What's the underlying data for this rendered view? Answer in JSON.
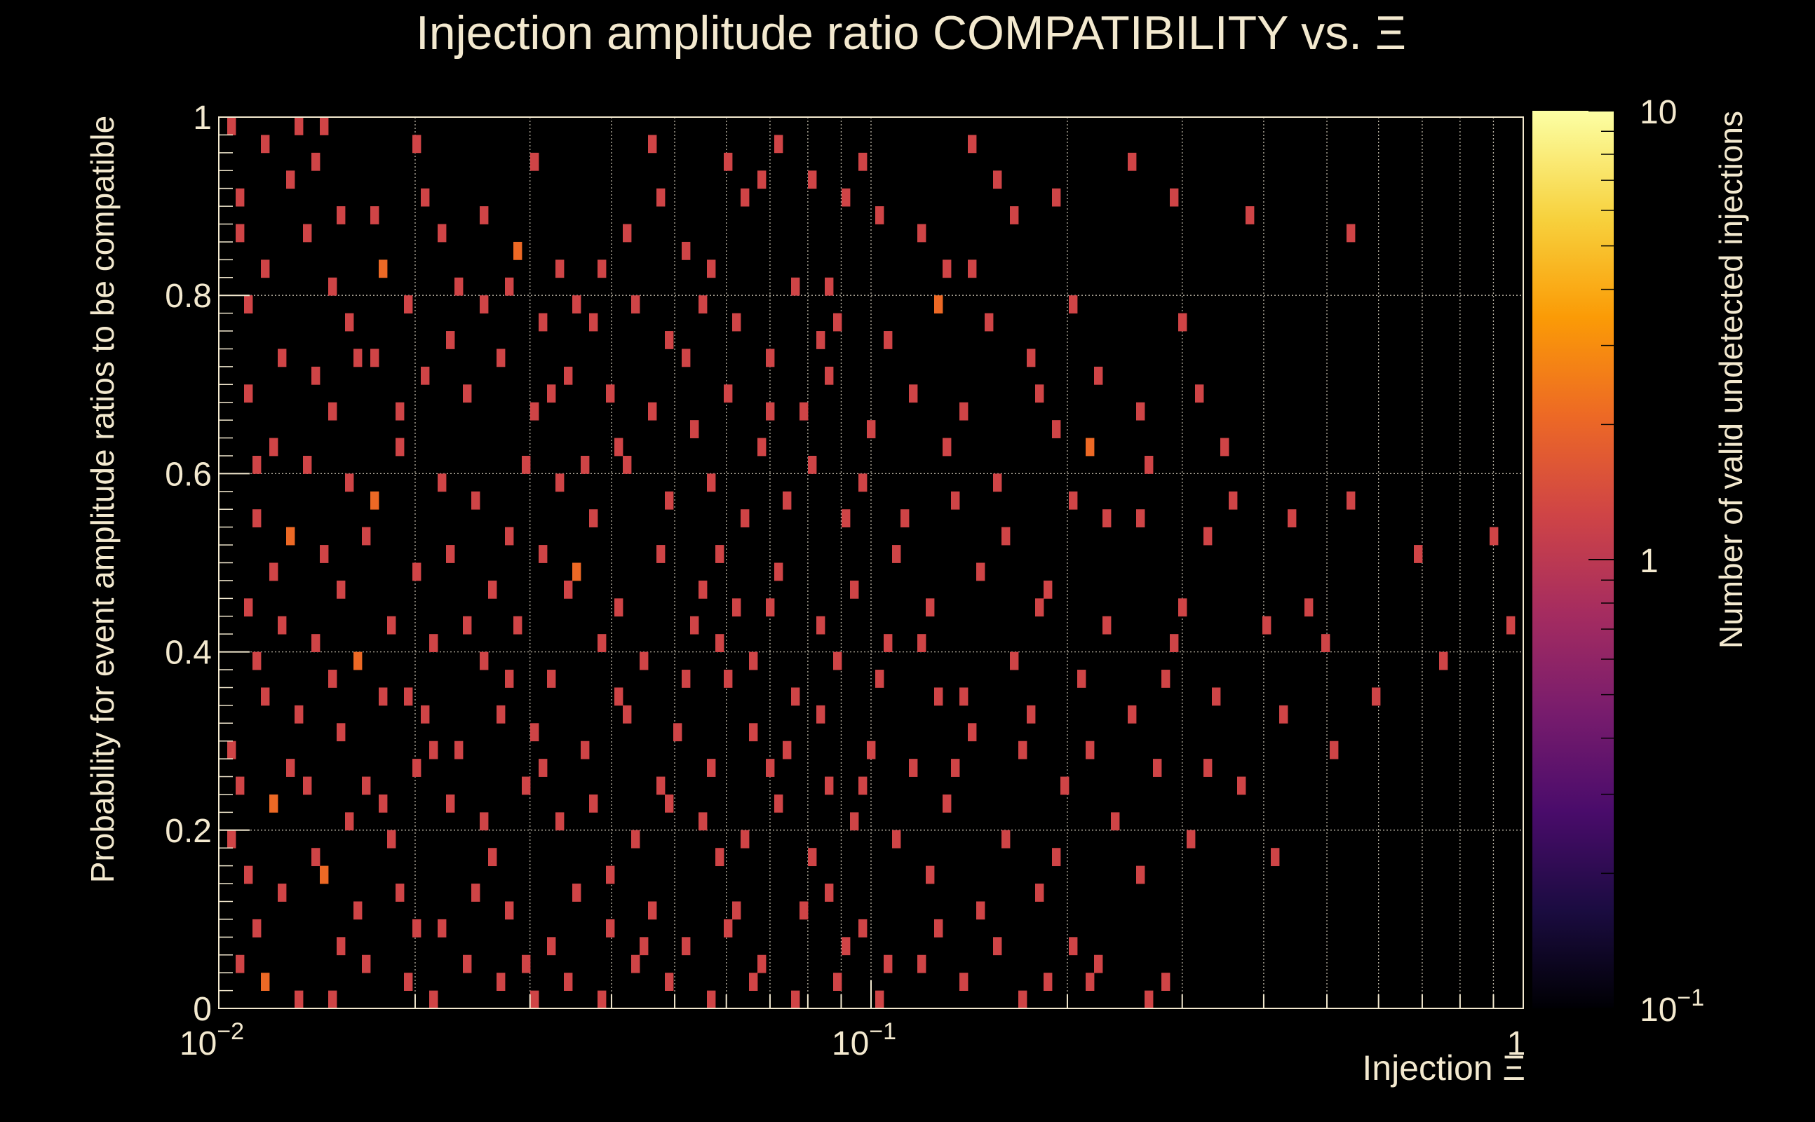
{
  "chart_data": {
    "type": "heatmap",
    "title": "Injection amplitude ratio COMPATIBILITY vs.  Ξ",
    "xlabel": "Injection Ξ",
    "ylabel": "Probability for event amplitude ratios to be compatible",
    "colorbar_label": "Number of valid undetected injections",
    "x_scale": "log",
    "xlim": [
      0.01,
      1
    ],
    "ylim": [
      0,
      1
    ],
    "z_scale": "log",
    "zlim": [
      0.1,
      10
    ],
    "grid": true,
    "x_ticks": [
      {
        "value": 0.01,
        "base": "10",
        "exp": "−2"
      },
      {
        "value": 0.1,
        "base": "10",
        "exp": "−1"
      },
      {
        "value": 1,
        "base": "1",
        "exp": ""
      }
    ],
    "y_ticks": [
      {
        "value": 0,
        "label": "0"
      },
      {
        "value": 0.2,
        "label": "0.2"
      },
      {
        "value": 0.4,
        "label": "0.4"
      },
      {
        "value": 0.6,
        "label": "0.6"
      },
      {
        "value": 0.8,
        "label": "0.8"
      },
      {
        "value": 1,
        "label": "1"
      }
    ],
    "z_ticks": [
      {
        "value": 0.1,
        "base": "10",
        "exp": "−1"
      },
      {
        "value": 1,
        "base": "1",
        "exp": ""
      },
      {
        "value": 10,
        "base": "10",
        "exp": ""
      }
    ],
    "bins": {
      "x_count": 100,
      "y_count": 50
    },
    "colormap": [
      "#000004",
      "#1b0c41",
      "#4a0c6b",
      "#781c6d",
      "#a52c60",
      "#cf4446",
      "#ed6925",
      "#fb9b06",
      "#f7d13d",
      "#fcffa4"
    ],
    "cells": [
      [
        1,
        49,
        1
      ],
      [
        5,
        48,
        1
      ],
      [
        9,
        49,
        1
      ],
      [
        12,
        49,
        1
      ],
      [
        23,
        48,
        1
      ],
      [
        2,
        45,
        1
      ],
      [
        8,
        46,
        1
      ],
      [
        14,
        44,
        1
      ],
      [
        2,
        43,
        1
      ],
      [
        10,
        43,
        1
      ],
      [
        18,
        44,
        1
      ],
      [
        26,
        43,
        1
      ],
      [
        31,
        44,
        1
      ],
      [
        35,
        42,
        2
      ],
      [
        40,
        41,
        1
      ],
      [
        45,
        41,
        1
      ],
      [
        48,
        43,
        1
      ],
      [
        52,
        45,
        1
      ],
      [
        55,
        42,
        1
      ],
      [
        60,
        47,
        1
      ],
      [
        62,
        45,
        1
      ],
      [
        66,
        48,
        1
      ],
      [
        70,
        46,
        1
      ],
      [
        74,
        45,
        1
      ],
      [
        78,
        44,
        1
      ],
      [
        83,
        43,
        1
      ],
      [
        86,
        41,
        1
      ],
      [
        92,
        46,
        1
      ],
      [
        94,
        44,
        1
      ],
      [
        108,
        47,
        1
      ],
      [
        113,
        45,
        1
      ],
      [
        122,
        44,
        1
      ],
      [
        134,
        43,
        1
      ],
      [
        5,
        41,
        1
      ],
      [
        13,
        40,
        1
      ],
      [
        19,
        41,
        2
      ],
      [
        22,
        39,
        1
      ],
      [
        28,
        40,
        1
      ],
      [
        34,
        40,
        1
      ],
      [
        38,
        38,
        1
      ],
      [
        42,
        39,
        1
      ],
      [
        49,
        39,
        1
      ],
      [
        53,
        37,
        1
      ],
      [
        57,
        39,
        1
      ],
      [
        61,
        38,
        1
      ],
      [
        65,
        36,
        1
      ],
      [
        68,
        40,
        1
      ],
      [
        73,
        38,
        1
      ],
      [
        79,
        37,
        1
      ],
      [
        85,
        39,
        2
      ],
      [
        91,
        38,
        1
      ],
      [
        96,
        36,
        1
      ],
      [
        104,
        35,
        1
      ],
      [
        116,
        34,
        1
      ],
      [
        7,
        36,
        1
      ],
      [
        11,
        35,
        1
      ],
      [
        16,
        36,
        1
      ],
      [
        24,
        35,
        1
      ],
      [
        29,
        34,
        1
      ],
      [
        33,
        36,
        1
      ],
      [
        37,
        33,
        1
      ],
      [
        41,
        35,
        1
      ],
      [
        46,
        34,
        1
      ],
      [
        51,
        33,
        1
      ],
      [
        56,
        32,
        1
      ],
      [
        60,
        34,
        1
      ],
      [
        64,
        31,
        1
      ],
      [
        69,
        33,
        1
      ],
      [
        72,
        35,
        1
      ],
      [
        77,
        32,
        1
      ],
      [
        82,
        34,
        1
      ],
      [
        88,
        33,
        1
      ],
      [
        99,
        32,
        1
      ],
      [
        103,
        31,
        2
      ],
      [
        110,
        30,
        1
      ],
      [
        6,
        31,
        1
      ],
      [
        10,
        30,
        1
      ],
      [
        15,
        29,
        1
      ],
      [
        21,
        31,
        1
      ],
      [
        26,
        29,
        1
      ],
      [
        30,
        28,
        1
      ],
      [
        36,
        30,
        1
      ],
      [
        40,
        29,
        1
      ],
      [
        44,
        27,
        1
      ],
      [
        48,
        30,
        1
      ],
      [
        53,
        28,
        1
      ],
      [
        58,
        29,
        1
      ],
      [
        62,
        27,
        1
      ],
      [
        67,
        28,
        1
      ],
      [
        70,
        30,
        1
      ],
      [
        76,
        29,
        1
      ],
      [
        81,
        27,
        1
      ],
      [
        87,
        28,
        1
      ],
      [
        93,
        26,
        1
      ],
      [
        101,
        28,
        1
      ],
      [
        109,
        27,
        1
      ],
      [
        117,
        26,
        1
      ],
      [
        127,
        27,
        1
      ],
      [
        134,
        28,
        1
      ],
      [
        142,
        25,
        1
      ],
      [
        151,
        26,
        1
      ],
      [
        4,
        27,
        1
      ],
      [
        8,
        26,
        2
      ],
      [
        12,
        25,
        1
      ],
      [
        17,
        26,
        1
      ],
      [
        23,
        24,
        1
      ],
      [
        27,
        25,
        1
      ],
      [
        32,
        23,
        1
      ],
      [
        38,
        25,
        1
      ],
      [
        42,
        24,
        2
      ],
      [
        47,
        22,
        1
      ],
      [
        52,
        25,
        1
      ],
      [
        57,
        23,
        1
      ],
      [
        61,
        22,
        1
      ],
      [
        66,
        24,
        1
      ],
      [
        71,
        21,
        1
      ],
      [
        75,
        23,
        1
      ],
      [
        80,
        25,
        1
      ],
      [
        84,
        22,
        1
      ],
      [
        90,
        24,
        1
      ],
      [
        98,
        23,
        1
      ],
      [
        105,
        21,
        1
      ],
      [
        114,
        22,
        1
      ],
      [
        124,
        21,
        1
      ],
      [
        131,
        20,
        1
      ],
      [
        145,
        19,
        1
      ],
      [
        153,
        21,
        1
      ],
      [
        3,
        22,
        1
      ],
      [
        7,
        21,
        1
      ],
      [
        11,
        20,
        1
      ],
      [
        16,
        19,
        2
      ],
      [
        20,
        21,
        1
      ],
      [
        25,
        20,
        1
      ],
      [
        31,
        19,
        1
      ],
      [
        35,
        21,
        1
      ],
      [
        39,
        18,
        1
      ],
      [
        45,
        20,
        1
      ],
      [
        50,
        19,
        1
      ],
      [
        55,
        18,
        1
      ],
      [
        59,
        20,
        1
      ],
      [
        63,
        19,
        1
      ],
      [
        68,
        17,
        1
      ],
      [
        73,
        19,
        1
      ],
      [
        78,
        18,
        1
      ],
      [
        83,
        20,
        1
      ],
      [
        88,
        17,
        1
      ],
      [
        94,
        19,
        1
      ],
      [
        102,
        18,
        1
      ],
      [
        108,
        16,
        1
      ],
      [
        118,
        17,
        1
      ],
      [
        126,
        16,
        1
      ],
      [
        137,
        17,
        1
      ],
      [
        5,
        17,
        1
      ],
      [
        9,
        16,
        1
      ],
      [
        14,
        15,
        1
      ],
      [
        19,
        17,
        1
      ],
      [
        24,
        16,
        1
      ],
      [
        28,
        14,
        1
      ],
      [
        33,
        16,
        1
      ],
      [
        37,
        15,
        1
      ],
      [
        43,
        14,
        1
      ],
      [
        48,
        16,
        1
      ],
      [
        54,
        15,
        1
      ],
      [
        58,
        13,
        1
      ],
      [
        63,
        15,
        1
      ],
      [
        67,
        14,
        1
      ],
      [
        72,
        12,
        1
      ],
      [
        77,
        14,
        1
      ],
      [
        82,
        13,
        1
      ],
      [
        89,
        15,
        1
      ],
      [
        95,
        14,
        1
      ],
      [
        100,
        12,
        1
      ],
      [
        111,
        13,
        1
      ],
      [
        121,
        12,
        1
      ],
      [
        132,
        14,
        1
      ],
      [
        2,
        12,
        1
      ],
      [
        6,
        11,
        2
      ],
      [
        10,
        12,
        1
      ],
      [
        15,
        10,
        1
      ],
      [
        19,
        11,
        1
      ],
      [
        23,
        13,
        1
      ],
      [
        27,
        11,
        1
      ],
      [
        31,
        10,
        1
      ],
      [
        36,
        12,
        1
      ],
      [
        40,
        10,
        1
      ],
      [
        44,
        11,
        1
      ],
      [
        49,
        9,
        1
      ],
      [
        53,
        11,
        1
      ],
      [
        57,
        10,
        1
      ],
      [
        62,
        9,
        1
      ],
      [
        66,
        11,
        1
      ],
      [
        70,
        8,
        1
      ],
      [
        75,
        10,
        1
      ],
      [
        80,
        9,
        1
      ],
      [
        86,
        11,
        1
      ],
      [
        93,
        9,
        1
      ],
      [
        99,
        8,
        1
      ],
      [
        106,
        10,
        1
      ],
      [
        115,
        9,
        1
      ],
      [
        125,
        8,
        1
      ],
      [
        3,
        7,
        1
      ],
      [
        7,
        6,
        1
      ],
      [
        12,
        7,
        2
      ],
      [
        16,
        5,
        1
      ],
      [
        21,
        6,
        1
      ],
      [
        26,
        4,
        1
      ],
      [
        30,
        6,
        1
      ],
      [
        34,
        5,
        1
      ],
      [
        39,
        3,
        1
      ],
      [
        42,
        6,
        1
      ],
      [
        46,
        4,
        1
      ],
      [
        51,
        5,
        1
      ],
      [
        55,
        3,
        1
      ],
      [
        60,
        4,
        1
      ],
      [
        64,
        2,
        1
      ],
      [
        69,
        5,
        1
      ],
      [
        74,
        3,
        1
      ],
      [
        79,
        2,
        1
      ],
      [
        85,
        4,
        1
      ],
      [
        92,
        3,
        1
      ],
      [
        98,
        1,
        1
      ],
      [
        104,
        2,
        1
      ],
      [
        112,
        1,
        1
      ],
      [
        2,
        2,
        1
      ],
      [
        5,
        1,
        2
      ],
      [
        9,
        0,
        1
      ],
      [
        13,
        0,
        1
      ],
      [
        17,
        2,
        1
      ],
      [
        22,
        1,
        1
      ],
      [
        25,
        0,
        1
      ],
      [
        29,
        2,
        1
      ],
      [
        33,
        1,
        1
      ],
      [
        37,
        0,
        1
      ],
      [
        41,
        1,
        1
      ],
      [
        45,
        0,
        1
      ],
      [
        49,
        2,
        1
      ],
      [
        53,
        1,
        1
      ],
      [
        58,
        0,
        1
      ],
      [
        63,
        1,
        1
      ],
      [
        68,
        0,
        1
      ],
      [
        73,
        1,
        1
      ],
      [
        78,
        0,
        1
      ],
      [
        83,
        2,
        1
      ],
      [
        88,
        1,
        1
      ],
      [
        95,
        0,
        1
      ],
      [
        103,
        1,
        1
      ],
      [
        110,
        0,
        1
      ],
      [
        18,
        36,
        1
      ],
      [
        21,
        33,
        1
      ],
      [
        47,
        31,
        1
      ],
      [
        3,
        34,
        1
      ],
      [
        13,
        33,
        1
      ],
      [
        27,
        37,
        1
      ],
      [
        39,
        34,
        1
      ],
      [
        55,
        36,
        1
      ],
      [
        65,
        33,
        1
      ],
      [
        71,
        37,
        1
      ],
      [
        86,
        31,
        1
      ],
      [
        97,
        34,
        1
      ],
      [
        109,
        33,
        1
      ],
      [
        119,
        31,
        1
      ],
      [
        4,
        30,
        1
      ],
      [
        18,
        28,
        2
      ],
      [
        34,
        26,
        1
      ],
      [
        43,
        30,
        1
      ],
      [
        59,
        25,
        1
      ],
      [
        74,
        27,
        1
      ],
      [
        92,
        29,
        1
      ],
      [
        105,
        27,
        1
      ],
      [
        120,
        28,
        1
      ],
      [
        6,
        24,
        1
      ],
      [
        14,
        23,
        1
      ],
      [
        29,
        21,
        1
      ],
      [
        41,
        23,
        1
      ],
      [
        56,
        21,
        1
      ],
      [
        65,
        22,
        1
      ],
      [
        79,
        20,
        1
      ],
      [
        97,
        22,
        1
      ],
      [
        113,
        20,
        1
      ],
      [
        129,
        22,
        1
      ],
      [
        4,
        19,
        1
      ],
      [
        13,
        18,
        1
      ],
      [
        22,
        17,
        1
      ],
      [
        34,
        18,
        1
      ],
      [
        47,
        17,
        1
      ],
      [
        60,
        18,
        1
      ],
      [
        71,
        16,
        1
      ],
      [
        85,
        17,
        1
      ],
      [
        96,
        16,
        1
      ],
      [
        112,
        18,
        1
      ],
      [
        1,
        14,
        1
      ],
      [
        8,
        13,
        1
      ],
      [
        17,
        12,
        1
      ],
      [
        25,
        14,
        1
      ],
      [
        38,
        13,
        1
      ],
      [
        52,
        12,
        1
      ],
      [
        65,
        13,
        1
      ],
      [
        76,
        12,
        1
      ],
      [
        87,
        13,
        1
      ],
      [
        103,
        14,
        1
      ],
      [
        117,
        13,
        1
      ],
      [
        1,
        9,
        1
      ],
      [
        11,
        8,
        1
      ],
      [
        20,
        9,
        1
      ],
      [
        32,
        8,
        1
      ],
      [
        46,
        7,
        1
      ],
      [
        59,
        8,
        1
      ],
      [
        72,
        6,
        1
      ],
      [
        84,
        7,
        1
      ],
      [
        97,
        6,
        1
      ],
      [
        109,
        7,
        1
      ],
      [
        4,
        4,
        1
      ],
      [
        14,
        3,
        1
      ],
      [
        23,
        4,
        1
      ],
      [
        36,
        2,
        1
      ],
      [
        50,
        3,
        1
      ],
      [
        61,
        5,
        1
      ],
      [
        76,
        4,
        1
      ],
      [
        90,
        5,
        1
      ],
      [
        101,
        3,
        1
      ],
      [
        11,
        47,
        1
      ],
      [
        24,
        45,
        1
      ],
      [
        37,
        47,
        1
      ],
      [
        51,
        48,
        1
      ],
      [
        64,
        46,
        1
      ],
      [
        76,
        47,
        1
      ],
      [
        89,
        48,
        1
      ],
      [
        99,
        45,
        1
      ],
      [
        3,
        39,
        1
      ],
      [
        15,
        38,
        1
      ],
      [
        31,
        39,
        1
      ],
      [
        44,
        38,
        1
      ],
      [
        58,
        41,
        1
      ],
      [
        72,
        40,
        1
      ],
      [
        89,
        41,
        1
      ],
      [
        101,
        39,
        1
      ],
      [
        114,
        38,
        1
      ]
    ]
  }
}
